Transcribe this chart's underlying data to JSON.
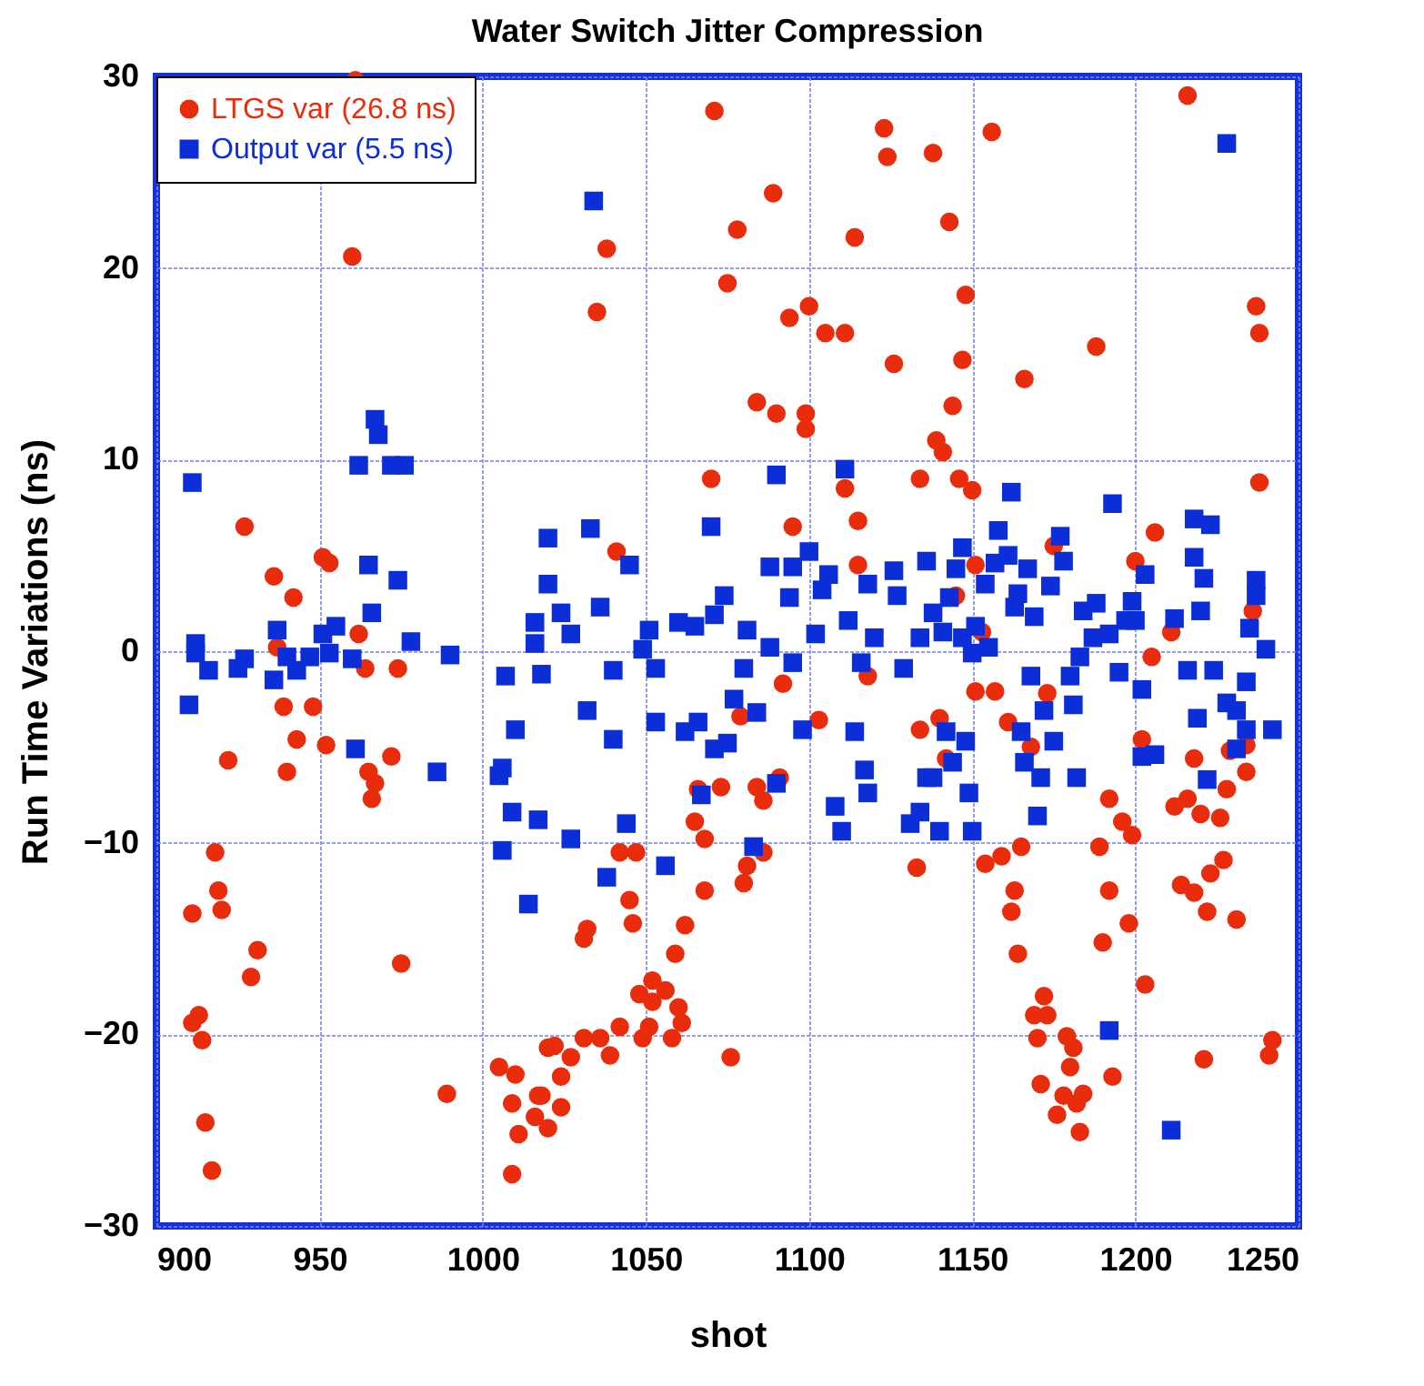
{
  "chart_data": {
    "type": "scatter",
    "title": "Water Switch Jitter Compression",
    "xlabel": "shot",
    "ylabel": "Run Time Variations (ns)",
    "xlim": [
      900,
      1250
    ],
    "xticks": [
      900,
      950,
      1000,
      1050,
      1100,
      1150,
      1200,
      1250
    ],
    "ylim": [
      -30,
      30
    ],
    "yticks": [
      -30,
      -20,
      -10,
      0,
      10,
      20,
      30
    ],
    "grid": true,
    "legend": "top left",
    "series": [
      {
        "name": "LTGS var (26.8 ns)",
        "color": "#e82c0c",
        "marker": "circle",
        "x": [
          911,
          913,
          914,
          915,
          917,
          918,
          919,
          920,
          911,
          922,
          927,
          931,
          929,
          936,
          937,
          939,
          940,
          942,
          943,
          948,
          951,
          952,
          953,
          960,
          961,
          962,
          964,
          965,
          966,
          967,
          972,
          974,
          975,
          989,
          1005,
          1009,
          1009,
          1010,
          1011,
          1016,
          1017,
          1018,
          1020,
          1020,
          1022,
          1024,
          1024,
          1027,
          1031,
          1031,
          1032,
          1035,
          1036,
          1038,
          1039,
          1041,
          1042,
          1042,
          1045,
          1046,
          1047,
          1048,
          1049,
          1051,
          1052,
          1052,
          1056,
          1058,
          1059,
          1060,
          1061,
          1062,
          1065,
          1066,
          1068,
          1068,
          1070,
          1071,
          1073,
          1075,
          1076,
          1078,
          1079,
          1080,
          1081,
          1084,
          1084,
          1086,
          1086,
          1089,
          1090,
          1091,
          1092,
          1094,
          1095,
          1099,
          1099,
          1100,
          1103,
          1105,
          1111,
          1111,
          1114,
          1115,
          1115,
          1118,
          1123,
          1124,
          1126,
          1133,
          1134,
          1134,
          1138,
          1139,
          1140,
          1141,
          1142,
          1143,
          1144,
          1145,
          1146,
          1147,
          1148,
          1150,
          1151,
          1151,
          1153,
          1154,
          1156,
          1157,
          1159,
          1161,
          1162,
          1163,
          1164,
          1165,
          1166,
          1168,
          1169,
          1170,
          1171,
          1172,
          1173,
          1173,
          1175,
          1176,
          1178,
          1179,
          1180,
          1181,
          1182,
          1183,
          1184,
          1188,
          1189,
          1190,
          1192,
          1192,
          1193,
          1196,
          1198,
          1199,
          1200,
          1202,
          1203,
          1205,
          1206,
          1211,
          1212,
          1214,
          1216,
          1216,
          1218,
          1218,
          1220,
          1221,
          1222,
          1223,
          1226,
          1227,
          1228,
          1229,
          1231,
          1234,
          1234,
          1236,
          1237,
          1238,
          1238,
          1241,
          1242
        ],
        "values": [
          -19.4,
          -19,
          -20.3,
          -24.6,
          -27.1,
          -10.5,
          -12.5,
          -13.5,
          -13.7,
          -5.7,
          6.5,
          -15.6,
          -17,
          3.9,
          0.2,
          -2.9,
          -6.3,
          2.8,
          -4.6,
          -2.9,
          4.9,
          -4.9,
          4.6,
          20.6,
          29.8,
          0.9,
          -0.9,
          -6.3,
          -7.7,
          -6.9,
          -5.5,
          -0.9,
          -16.3,
          -23.1,
          -21.7,
          -23.6,
          -27.3,
          -22.1,
          -25.2,
          -24.3,
          -23.2,
          -23.2,
          -20.7,
          -24.9,
          -20.6,
          -22.2,
          -23.8,
          -21.2,
          -20.2,
          -15,
          -14.5,
          17.7,
          -20.2,
          21,
          -21.1,
          5.2,
          -10.5,
          -19.6,
          -13,
          -14.2,
          -10.5,
          -17.9,
          -20.2,
          -19.6,
          -17.2,
          -18.3,
          -17.7,
          -20.2,
          -15.8,
          -18.6,
          -19.4,
          -14.3,
          -8.9,
          -7.2,
          -9.8,
          -12.5,
          9,
          28.2,
          -7.1,
          19.2,
          -21.2,
          22,
          -3.4,
          -12.1,
          -11.2,
          13,
          -7.1,
          -7.8,
          -10.5,
          23.9,
          12.4,
          -6.6,
          -1.7,
          17.4,
          6.5,
          12.4,
          11.6,
          18,
          -3.6,
          16.6,
          16.6,
          8.5,
          21.6,
          6.8,
          4.5,
          -1.3,
          27.3,
          25.8,
          15,
          -11.3,
          9,
          -4.1,
          26,
          11,
          -3.5,
          10.4,
          -5.6,
          22.4,
          12.8,
          2.9,
          9,
          15.2,
          18.6,
          8.4,
          4.5,
          -2.1,
          1,
          -11.1,
          27.1,
          -2.1,
          -10.7,
          -3.7,
          -13.6,
          -12.5,
          -15.8,
          -10.2,
          14.2,
          -5,
          -19,
          -20.2,
          -22.6,
          -18,
          -19,
          -2.2,
          5.5,
          -24.2,
          -23.2,
          -20.1,
          -21.7,
          -20.7,
          -23.6,
          -25.1,
          -23.1,
          15.9,
          -10.2,
          -15.2,
          -7.7,
          -12.5,
          -22.2,
          -8.9,
          -14.2,
          -9.6,
          4.7,
          -4.6,
          -17.4,
          -0.3,
          6.2,
          1,
          -8.1,
          -12.2,
          29,
          -7.7,
          -5.6,
          -12.6,
          -8.5,
          -21.3,
          -13.6,
          -11.6,
          -8.7,
          -10.9,
          -7.2,
          -5.2,
          -14,
          -4.9,
          -6.3,
          2.1,
          18,
          16.6,
          8.8,
          -21.1,
          -20.3
        ]
      },
      {
        "name": "Output var (5.5 ns)",
        "color": "#0b2ed8",
        "marker": "square",
        "x": [
          911,
          912,
          912,
          910,
          916,
          925,
          927,
          936,
          937,
          940,
          943,
          947,
          951,
          953,
          955,
          960,
          961,
          962,
          965,
          966,
          967,
          968,
          972,
          974,
          976,
          978,
          986,
          990,
          1005,
          1006,
          1006,
          1007,
          1009,
          1010,
          1014,
          1016,
          1016,
          1017,
          1018,
          1020,
          1020,
          1024,
          1027,
          1027,
          1032,
          1033,
          1034,
          1036,
          1038,
          1040,
          1040,
          1044,
          1045,
          1049,
          1051,
          1053,
          1053,
          1056,
          1060,
          1062,
          1065,
          1066,
          1067,
          1070,
          1071,
          1071,
          1074,
          1075,
          1077,
          1080,
          1081,
          1083,
          1084,
          1088,
          1088,
          1090,
          1090,
          1094,
          1095,
          1095,
          1098,
          1100,
          1102,
          1104,
          1106,
          1108,
          1110,
          1111,
          1112,
          1114,
          1116,
          1117,
          1118,
          1118,
          1120,
          1126,
          1127,
          1129,
          1131,
          1134,
          1134,
          1136,
          1136,
          1138,
          1138,
          1140,
          1141,
          1142,
          1143,
          1144,
          1145,
          1147,
          1147,
          1148,
          1149,
          1150,
          1150,
          1151,
          1154,
          1155,
          1157,
          1158,
          1161,
          1162,
          1163,
          1164,
          1165,
          1166,
          1167,
          1168,
          1169,
          1170,
          1171,
          1172,
          1174,
          1175,
          1177,
          1178,
          1180,
          1181,
          1182,
          1183,
          1184,
          1187,
          1188,
          1192,
          1192,
          1193,
          1195,
          1197,
          1199,
          1200,
          1202,
          1202,
          1203,
          1206,
          1211,
          1212,
          1216,
          1218,
          1218,
          1219,
          1220,
          1221,
          1222,
          1223,
          1224,
          1228,
          1228,
          1231,
          1231,
          1234,
          1234,
          1235,
          1237,
          1237,
          1240,
          1242
        ],
        "values": [
          8.8,
          0.4,
          -0.1,
          -2.8,
          -1,
          -0.9,
          -0.4,
          -1.5,
          1.1,
          -0.3,
          -1,
          -0.3,
          0.9,
          -0.1,
          1.3,
          -0.4,
          -5.1,
          9.7,
          4.5,
          2,
          12.1,
          11.3,
          9.7,
          3.7,
          9.7,
          0.5,
          -6.3,
          -0.2,
          -6.5,
          -6.1,
          -10.4,
          -1.3,
          -8.4,
          -4.1,
          -13.2,
          1.5,
          0.4,
          -8.8,
          -1.2,
          5.9,
          3.5,
          2,
          0.9,
          -9.8,
          -3.1,
          6.4,
          23.5,
          2.3,
          -11.8,
          -1,
          -4.6,
          -9,
          4.5,
          0.1,
          1.1,
          -0.9,
          -3.7,
          -11.2,
          1.5,
          -4.2,
          1.3,
          -3.7,
          -7.5,
          6.5,
          1.9,
          -5.1,
          2.9,
          -4.8,
          -2.5,
          -0.9,
          1.1,
          -10.2,
          -3.2,
          4.4,
          0.2,
          9.2,
          -6.9,
          2.8,
          4.4,
          -0.6,
          -4.1,
          5.2,
          0.9,
          3.2,
          4,
          -8.1,
          -9.4,
          9.5,
          1.6,
          -4.2,
          -0.6,
          -6.2,
          3.5,
          -7.4,
          0.7,
          4.2,
          2.9,
          -0.9,
          -9,
          0.7,
          -8.4,
          4.7,
          -6.6,
          2,
          -6.6,
          -9.4,
          1,
          -4.2,
          2.8,
          -5.8,
          4.3,
          5.4,
          0.7,
          -4.7,
          -7.4,
          -0.1,
          -9.4,
          1.3,
          3.5,
          0.2,
          4.6,
          6.3,
          5,
          8.3,
          2.3,
          3,
          -4.2,
          -5.8,
          4.3,
          -1.3,
          1.8,
          -8.6,
          -6.6,
          -3.1,
          3.4,
          -4.7,
          6,
          4.7,
          -1.3,
          -2.8,
          -6.6,
          -0.3,
          2.1,
          0.7,
          2.5,
          0.9,
          -19.8,
          7.7,
          -1.1,
          1.6,
          2.6,
          1.6,
          -2,
          -5.5,
          4,
          -5.4,
          -25,
          1.7,
          -1,
          6.9,
          4.9,
          -3.5,
          2.1,
          3.8,
          -6.7,
          6.6,
          -1,
          26.5,
          -2.7,
          -3.1,
          -5.1,
          -1.6,
          -4.1,
          1.2,
          3.7,
          2.9,
          0.1,
          -4.1
        ]
      }
    ]
  }
}
